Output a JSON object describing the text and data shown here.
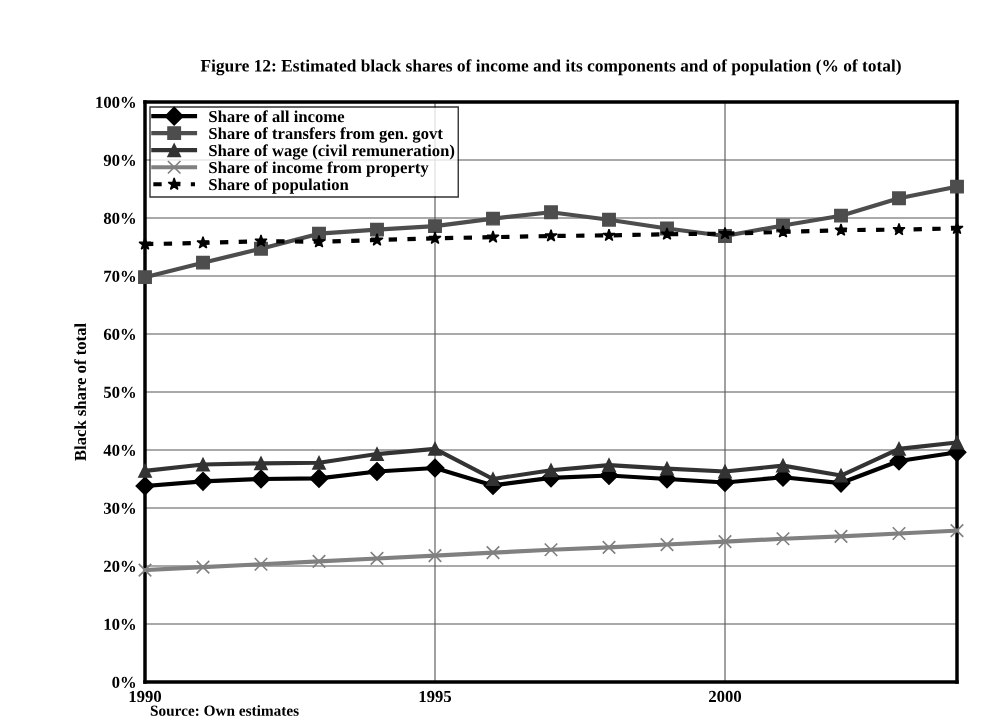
{
  "chart_data": {
    "type": "line",
    "title": "Figure 12: Estimated black shares of income and its components and of population (% of total)",
    "ylabel": "Black share of total",
    "x": [
      1990,
      1991,
      1992,
      1993,
      1994,
      1995,
      1996,
      1997,
      1998,
      1999,
      2000,
      2001,
      2002,
      2003,
      2004
    ],
    "xlim": [
      1990,
      2004
    ],
    "xticks": [
      1990,
      1995,
      2000
    ],
    "ylim": [
      0,
      100
    ],
    "yticks": [
      {
        "value": 0,
        "label": "0%"
      },
      {
        "value": 10,
        "label": "10%"
      },
      {
        "value": 20,
        "label": "20%"
      },
      {
        "value": 30,
        "label": "30%"
      },
      {
        "value": 40,
        "label": "40%"
      },
      {
        "value": 50,
        "label": "50%"
      },
      {
        "value": 60,
        "label": "60%"
      },
      {
        "value": 70,
        "label": "70%"
      },
      {
        "value": 80,
        "label": "80%"
      },
      {
        "value": 90,
        "label": "90%"
      },
      {
        "value": 100,
        "label": "100%"
      }
    ],
    "grid": true,
    "legend": "top left",
    "annotations": [
      "Source: Own estimates"
    ],
    "series": [
      {
        "name": "Share of all income",
        "color": "#000000",
        "marker": "diamond",
        "line_style": "solid",
        "values": [
          33.8,
          34.6,
          35.0,
          35.1,
          36.3,
          36.9,
          33.9,
          35.2,
          35.6,
          35.0,
          34.4,
          35.3,
          34.3,
          38.1,
          39.6
        ]
      },
      {
        "name": "Share of transfers from gen. govt",
        "color": "#4d4d4d",
        "marker": "square",
        "line_style": "solid",
        "values": [
          69.8,
          72.3,
          74.7,
          77.3,
          78.0,
          78.6,
          79.9,
          81.0,
          79.7,
          78.2,
          76.9,
          78.7,
          80.4,
          83.4,
          85.4
        ]
      },
      {
        "name": "Share of wage (civil remuneration)",
        "color": "#333333",
        "marker": "triangle",
        "line_style": "solid",
        "values": [
          36.4,
          37.5,
          37.7,
          37.8,
          39.3,
          40.2,
          35.0,
          36.5,
          37.4,
          36.8,
          36.3,
          37.3,
          35.6,
          40.2,
          41.3
        ]
      },
      {
        "name": "Share of income from property",
        "color": "#808080",
        "marker": "cross",
        "line_style": "solid",
        "values": [
          19.3,
          19.8,
          20.3,
          20.8,
          21.3,
          21.8,
          22.3,
          22.8,
          23.2,
          23.7,
          24.2,
          24.7,
          25.1,
          25.6,
          26.1
        ]
      },
      {
        "name": "Share of population",
        "color": "#000000",
        "marker": "star",
        "line_style": "dashed",
        "values": [
          75.5,
          75.7,
          76.0,
          75.9,
          76.2,
          76.5,
          76.7,
          76.9,
          77.0,
          77.2,
          77.3,
          77.6,
          77.9,
          78.0,
          78.2
        ]
      }
    ]
  }
}
